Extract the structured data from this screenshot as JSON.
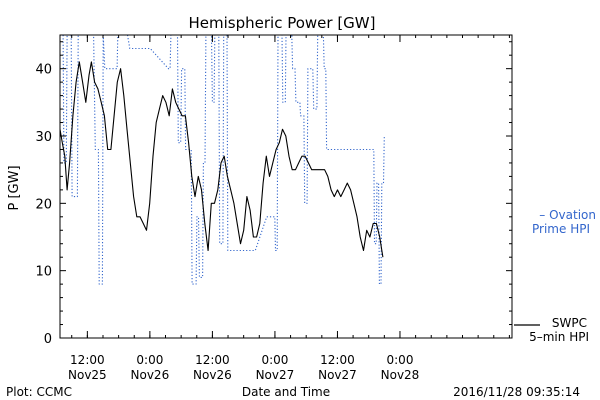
{
  "chart_data": {
    "type": "line",
    "title": "Hemispheric Power [GW]",
    "xlabel": "Date and Time",
    "ylabel": "P [GW]",
    "ylim": [
      0,
      45
    ],
    "yticks": [
      0,
      10,
      20,
      30,
      40
    ],
    "xlim": [
      "2016-11-25 06:45",
      "2016-11-28 21:30"
    ],
    "xticks": [
      {
        "x": "2016-11-25 12:00",
        "line1": "12:00",
        "line2": "Nov25"
      },
      {
        "x": "2016-11-26 00:00",
        "line1": "0:00",
        "line2": "Nov26"
      },
      {
        "x": "2016-11-26 12:00",
        "line1": "12:00",
        "line2": "Nov26"
      },
      {
        "x": "2016-11-27 00:00",
        "line1": "0:00",
        "line2": "Nov27"
      },
      {
        "x": "2016-11-27 12:00",
        "line1": "12:00",
        "line2": "Nov27"
      },
      {
        "x": "2016-11-28 00:00",
        "line1": "0:00",
        "line2": "Nov28"
      }
    ],
    "grid": false,
    "legend_position": "right",
    "series": [
      {
        "name": "Ovation Prime HPI",
        "label_lines": [
          "– Ovation",
          "Prime HPI"
        ],
        "color": "#3366cc",
        "style": "dotted",
        "points": [
          [
            "2016-11-25 06:45",
            45
          ],
          [
            "2016-11-25 07:21",
            45
          ],
          [
            "2016-11-25 07:30",
            26
          ],
          [
            "2016-11-25 07:57",
            26
          ],
          [
            "2016-11-25 08:07",
            45
          ],
          [
            "2016-11-25 08:54",
            45
          ],
          [
            "2016-11-25 09:04",
            21
          ],
          [
            "2016-11-25 10:05",
            21
          ],
          [
            "2016-11-25 10:15",
            45
          ],
          [
            "2016-11-25 13:12",
            45
          ],
          [
            "2016-11-25 13:31",
            28
          ],
          [
            "2016-11-25 14:07",
            28
          ],
          [
            "2016-11-25 14:16",
            8
          ],
          [
            "2016-11-25 14:53",
            8
          ],
          [
            "2016-11-25 15:02",
            45
          ],
          [
            "2016-11-25 15:21",
            40
          ],
          [
            "2016-11-25 17:42",
            40
          ],
          [
            "2016-11-25 17:51",
            45
          ],
          [
            "2016-11-25 19:42",
            45
          ],
          [
            "2016-11-25 20:09",
            43
          ],
          [
            "2016-11-26 00:04",
            43
          ],
          [
            "2016-11-26 03:34",
            40
          ],
          [
            "2016-11-26 03:53",
            40
          ],
          [
            "2016-11-26 04:02",
            45
          ],
          [
            "2016-11-26 05:18",
            45
          ],
          [
            "2016-11-26 05:27",
            29
          ],
          [
            "2016-11-26 05:55",
            29
          ],
          [
            "2016-11-26 06:05",
            40
          ],
          [
            "2016-11-26 06:42",
            40
          ],
          [
            "2016-11-26 06:51",
            28
          ],
          [
            "2016-11-26 07:56",
            28
          ],
          [
            "2016-11-26 08:06",
            8
          ],
          [
            "2016-11-26 08:52",
            8
          ],
          [
            "2016-11-26 09:02",
            18
          ],
          [
            "2016-11-26 09:20",
            18
          ],
          [
            "2016-11-26 09:30",
            9
          ],
          [
            "2016-11-26 10:07",
            9
          ],
          [
            "2016-11-26 10:16",
            26
          ],
          [
            "2016-11-26 10:35",
            26
          ],
          [
            "2016-11-26 10:45",
            45
          ],
          [
            "2016-11-26 11:50",
            45
          ],
          [
            "2016-11-26 12:00",
            35
          ],
          [
            "2016-11-26 12:19",
            35
          ],
          [
            "2016-11-26 12:28",
            45
          ],
          [
            "2016-11-26 13:14",
            45
          ],
          [
            "2016-11-26 13:24",
            14
          ],
          [
            "2016-11-26 14:01",
            14
          ],
          [
            "2016-11-26 14:10",
            45
          ],
          [
            "2016-11-26 14:48",
            45
          ],
          [
            "2016-11-26 14:57",
            13
          ],
          [
            "2016-11-26 20:14",
            13
          ],
          [
            "2016-11-26 22:25",
            18
          ],
          [
            "2016-11-26 23:58",
            18
          ],
          [
            "2016-11-27 00:07",
            13
          ],
          [
            "2016-11-27 00:26",
            13
          ],
          [
            "2016-11-27 00:35",
            45
          ],
          [
            "2016-11-27 01:22",
            45
          ],
          [
            "2016-11-27 01:31",
            35
          ],
          [
            "2016-11-27 01:59",
            35
          ],
          [
            "2016-11-27 02:08",
            45
          ],
          [
            "2016-11-27 03:14",
            45
          ],
          [
            "2016-11-27 03:23",
            40
          ],
          [
            "2016-11-27 03:51",
            40
          ],
          [
            "2016-11-27 04:01",
            35
          ],
          [
            "2016-11-27 04:47",
            35
          ],
          [
            "2016-11-27 04:56",
            33
          ],
          [
            "2016-11-27 05:34",
            33
          ],
          [
            "2016-11-27 05:43",
            20
          ],
          [
            "2016-11-27 06:11",
            20
          ],
          [
            "2016-11-27 06:20",
            40
          ],
          [
            "2016-11-27 07:16",
            40
          ],
          [
            "2016-11-27 07:26",
            34
          ],
          [
            "2016-11-27 08:03",
            34
          ],
          [
            "2016-11-27 08:12",
            45
          ],
          [
            "2016-11-27 09:18",
            45
          ],
          [
            "2016-11-27 09:27",
            40
          ],
          [
            "2016-11-27 09:46",
            40
          ],
          [
            "2016-11-27 09:55",
            28
          ],
          [
            "2016-11-27 18:58",
            28
          ],
          [
            "2016-11-27 19:07",
            14
          ],
          [
            "2016-11-27 19:26",
            14
          ],
          [
            "2016-11-27 19:35",
            23
          ],
          [
            "2016-11-27 19:54",
            23
          ],
          [
            "2016-11-27 20:03",
            8
          ],
          [
            "2016-11-27 20:22",
            8
          ],
          [
            "2016-11-27 20:31",
            23
          ],
          [
            "2016-11-27 20:50",
            23
          ],
          [
            "2016-11-27 20:59",
            30
          ]
        ]
      },
      {
        "name": "SWPC 5-min HPI",
        "label_lines": [
          "SWPC",
          "5–min HPI"
        ],
        "color": "#000000",
        "style": "solid",
        "points": [
          [
            "2016-11-25 06:45",
            31
          ],
          [
            "2016-11-25 07:12",
            29
          ],
          [
            "2016-11-25 07:40",
            27
          ],
          [
            "2016-11-25 08:07",
            22
          ],
          [
            "2016-11-25 08:35",
            26
          ],
          [
            "2016-11-25 09:13",
            33
          ],
          [
            "2016-11-25 09:50",
            38
          ],
          [
            "2016-11-25 10:27",
            41
          ],
          [
            "2016-11-25 11:05",
            38
          ],
          [
            "2016-11-25 11:42",
            35
          ],
          [
            "2016-11-25 12:19",
            39
          ],
          [
            "2016-11-25 12:47",
            41
          ],
          [
            "2016-11-25 13:24",
            38
          ],
          [
            "2016-11-25 14:02",
            37
          ],
          [
            "2016-11-25 14:39",
            35
          ],
          [
            "2016-11-25 15:16",
            33
          ],
          [
            "2016-11-25 15:54",
            28
          ],
          [
            "2016-11-25 16:31",
            28
          ],
          [
            "2016-11-25 17:08",
            33
          ],
          [
            "2016-11-25 17:45",
            38
          ],
          [
            "2016-11-25 18:23",
            40
          ],
          [
            "2016-11-25 19:00",
            36
          ],
          [
            "2016-11-25 19:37",
            31
          ],
          [
            "2016-11-25 20:15",
            26
          ],
          [
            "2016-11-25 20:52",
            21
          ],
          [
            "2016-11-25 21:29",
            18
          ],
          [
            "2016-11-25 22:06",
            18
          ],
          [
            "2016-11-25 22:44",
            17
          ],
          [
            "2016-11-25 23:21",
            16
          ],
          [
            "2016-11-25 23:58",
            20
          ],
          [
            "2016-11-26 00:36",
            27
          ],
          [
            "2016-11-26 01:13",
            32
          ],
          [
            "2016-11-26 01:50",
            34
          ],
          [
            "2016-11-26 02:28",
            36
          ],
          [
            "2016-11-26 03:05",
            35
          ],
          [
            "2016-11-26 03:42",
            33
          ],
          [
            "2016-11-26 04:19",
            37
          ],
          [
            "2016-11-26 04:57",
            35
          ],
          [
            "2016-11-26 05:34",
            34
          ],
          [
            "2016-11-26 06:11",
            33
          ],
          [
            "2016-11-26 06:49",
            33
          ],
          [
            "2016-11-26 07:26",
            29
          ],
          [
            "2016-11-26 08:03",
            24
          ],
          [
            "2016-11-26 08:40",
            21
          ],
          [
            "2016-11-26 09:18",
            24
          ],
          [
            "2016-11-26 09:55",
            22
          ],
          [
            "2016-11-26 10:32",
            17
          ],
          [
            "2016-11-26 11:10",
            13
          ],
          [
            "2016-11-26 11:47",
            20
          ],
          [
            "2016-11-26 12:24",
            20
          ],
          [
            "2016-11-26 13:02",
            22
          ],
          [
            "2016-11-26 13:39",
            26
          ],
          [
            "2016-11-26 14:16",
            27
          ],
          [
            "2016-11-26 14:53",
            24
          ],
          [
            "2016-11-26 15:31",
            22
          ],
          [
            "2016-11-26 16:08",
            20
          ],
          [
            "2016-11-26 16:45",
            17
          ],
          [
            "2016-11-26 17:23",
            14
          ],
          [
            "2016-11-26 18:00",
            16
          ],
          [
            "2016-11-26 18:37",
            21
          ],
          [
            "2016-11-26 19:14",
            19
          ],
          [
            "2016-11-26 19:52",
            15
          ],
          [
            "2016-11-26 20:29",
            15
          ],
          [
            "2016-11-26 21:06",
            17
          ],
          [
            "2016-11-26 21:44",
            23
          ],
          [
            "2016-11-26 22:21",
            27
          ],
          [
            "2016-11-26 22:58",
            24
          ],
          [
            "2016-11-26 23:36",
            26
          ],
          [
            "2016-11-27 00:13",
            28
          ],
          [
            "2016-11-27 00:50",
            29
          ],
          [
            "2016-11-27 01:27",
            31
          ],
          [
            "2016-11-27 02:05",
            30
          ],
          [
            "2016-11-27 02:42",
            27
          ],
          [
            "2016-11-27 03:19",
            25
          ],
          [
            "2016-11-27 03:57",
            25
          ],
          [
            "2016-11-27 04:34",
            26
          ],
          [
            "2016-11-27 05:11",
            27
          ],
          [
            "2016-11-27 05:48",
            27
          ],
          [
            "2016-11-27 06:26",
            26
          ],
          [
            "2016-11-27 07:03",
            25
          ],
          [
            "2016-11-27 07:40",
            25
          ],
          [
            "2016-11-27 08:18",
            25
          ],
          [
            "2016-11-27 08:55",
            25
          ],
          [
            "2016-11-27 09:32",
            25
          ],
          [
            "2016-11-27 10:09",
            24
          ],
          [
            "2016-11-27 10:47",
            22
          ],
          [
            "2016-11-27 11:24",
            21
          ],
          [
            "2016-11-27 12:01",
            22
          ],
          [
            "2016-11-27 12:39",
            21
          ],
          [
            "2016-11-27 13:16",
            22
          ],
          [
            "2016-11-27 13:53",
            23
          ],
          [
            "2016-11-27 14:31",
            22
          ],
          [
            "2016-11-27 15:08",
            20
          ],
          [
            "2016-11-27 15:45",
            18
          ],
          [
            "2016-11-27 16:22",
            15
          ],
          [
            "2016-11-27 17:00",
            13
          ],
          [
            "2016-11-27 17:37",
            16
          ],
          [
            "2016-11-27 18:14",
            15
          ],
          [
            "2016-11-27 18:52",
            17
          ],
          [
            "2016-11-27 19:29",
            17
          ],
          [
            "2016-11-27 20:06",
            15
          ],
          [
            "2016-11-27 20:43",
            12
          ]
        ]
      }
    ],
    "footer": {
      "left": "Plot: CCMC",
      "right": "2016/11/28 09:35:14"
    }
  }
}
